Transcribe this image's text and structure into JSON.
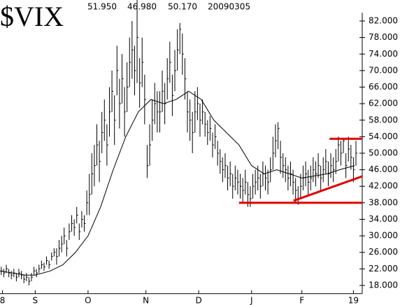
{
  "chart_data": {
    "type": "hlc",
    "title": "$VIX",
    "header_values": [
      "51.950",
      "46.980",
      "50.170",
      "20090305"
    ],
    "color": "#000000",
    "xlim": [
      0,
      144
    ],
    "ylim": [
      16,
      84
    ],
    "xticks": [
      {
        "value": 1,
        "label": "8"
      },
      {
        "value": 14,
        "label": "S"
      },
      {
        "value": 35,
        "label": "O"
      },
      {
        "value": 58,
        "label": "N"
      },
      {
        "value": 79,
        "label": "D"
      },
      {
        "value": 100,
        "label": "J"
      },
      {
        "value": 120,
        "label": "F"
      },
      {
        "value": 140.5,
        "label": "19"
      }
    ],
    "yticks": [
      {
        "value": 18,
        "label": "18.000"
      },
      {
        "value": 22,
        "label": "22.000"
      },
      {
        "value": 26,
        "label": "26.000"
      },
      {
        "value": 30,
        "label": "30.000"
      },
      {
        "value": 34,
        "label": "34.000"
      },
      {
        "value": 38,
        "label": "38.000"
      },
      {
        "value": 42,
        "label": "42.000"
      },
      {
        "value": 46,
        "label": "46.000"
      },
      {
        "value": 50,
        "label": "50.000"
      },
      {
        "value": 54,
        "label": "54.000"
      },
      {
        "value": 58,
        "label": "58.000"
      },
      {
        "value": 62,
        "label": "62.000"
      },
      {
        "value": 66,
        "label": "66.000"
      },
      {
        "value": 70,
        "label": "70.000"
      },
      {
        "value": 74,
        "label": "74.000"
      },
      {
        "value": 78,
        "label": "78.000"
      },
      {
        "value": 82,
        "label": "82.000"
      }
    ],
    "high": [
      22.5,
      22,
      23,
      22,
      21.5,
      22,
      21,
      22,
      21.5,
      20.5,
      21,
      20,
      21,
      22.5,
      22,
      23,
      24,
      23.5,
      25,
      24,
      26,
      27,
      27,
      29,
      30,
      32,
      29,
      33,
      35,
      34,
      37,
      33,
      36,
      35,
      41,
      45,
      50,
      52,
      57,
      53,
      60,
      63,
      57,
      66,
      70,
      64,
      76,
      68,
      74,
      66,
      72,
      78,
      82,
      76,
      89,
      73,
      78,
      69,
      52,
      57,
      63,
      67,
      65,
      65,
      70,
      67,
      73,
      77,
      69,
      75,
      80,
      81.5,
      79,
      73,
      65,
      63,
      60,
      65,
      66,
      62,
      63,
      60,
      58,
      59,
      55,
      57,
      53,
      51,
      49,
      50,
      47,
      48,
      45,
      47,
      46,
      45,
      44,
      46,
      43,
      42,
      45,
      46,
      47,
      45,
      48,
      47,
      46,
      49,
      54,
      57,
      57.5,
      53,
      50,
      49,
      47,
      48,
      46,
      44,
      42,
      45,
      47,
      48,
      46,
      47,
      49,
      48,
      50,
      47,
      49,
      51,
      48,
      50,
      49,
      51,
      54,
      53,
      53.5,
      50,
      54,
      52,
      49,
      53
    ],
    "low": [
      20.5,
      20,
      21,
      20,
      19.5,
      20,
      19,
      20,
      19.5,
      18.5,
      19,
      18,
      19,
      20.5,
      20,
      21,
      22,
      21.5,
      23,
      22,
      24,
      25,
      23,
      25,
      26,
      28,
      25,
      29,
      31,
      30,
      33,
      29,
      32,
      31,
      35,
      35,
      40,
      42,
      47,
      43,
      50,
      53,
      47,
      54,
      60,
      52,
      64,
      56,
      62,
      54,
      60,
      66,
      68,
      64,
      67,
      61,
      66,
      57,
      44,
      47,
      53,
      57,
      55,
      55,
      60,
      57,
      63,
      67,
      59,
      65,
      70,
      74,
      69,
      63,
      55,
      53,
      50,
      55,
      58,
      54,
      57,
      54,
      52,
      53,
      49,
      51,
      47,
      45,
      43,
      44,
      41,
      42,
      39,
      41,
      40,
      39,
      38,
      40,
      37,
      37,
      39,
      40,
      41,
      39,
      42,
      41,
      40,
      43,
      46,
      49,
      51,
      45,
      44,
      43,
      41,
      42,
      40,
      38,
      37.5,
      39,
      41,
      42,
      40,
      41,
      43,
      42,
      44,
      41,
      43,
      45,
      42,
      44,
      43,
      45,
      48,
      47,
      50,
      44,
      48,
      46,
      43,
      47
    ],
    "close": [
      21.5,
      21,
      22,
      21,
      20.5,
      21,
      20,
      21,
      20.5,
      19.5,
      20,
      19,
      20,
      21.5,
      21,
      22,
      23,
      22.5,
      24,
      23,
      25,
      26,
      25,
      27,
      28,
      30,
      27,
      31,
      33,
      32,
      35,
      31,
      34,
      33,
      38,
      40,
      45,
      47,
      52,
      48,
      55,
      58,
      52,
      60,
      65,
      58,
      70,
      62,
      68,
      60,
      66,
      72,
      75,
      70,
      78,
      67,
      72,
      63,
      47,
      52,
      58,
      62,
      60,
      60,
      65,
      62,
      68,
      72,
      64,
      70,
      75,
      80,
      74,
      68,
      60,
      58,
      55,
      60,
      62,
      58,
      60,
      57,
      55,
      56,
      52,
      54,
      50,
      48,
      46,
      47,
      44,
      45,
      42,
      44,
      43,
      42,
      41,
      43,
      40,
      39,
      42,
      43,
      44,
      42,
      45,
      44,
      43,
      46,
      50,
      53,
      56,
      49,
      47,
      46,
      44,
      45,
      43,
      41,
      39,
      42,
      44,
      45,
      43,
      44,
      46,
      45,
      47,
      44,
      46,
      48,
      45,
      47,
      46,
      48,
      52,
      50,
      53,
      47,
      51,
      49,
      46,
      50
    ],
    "moving_average": {
      "color": "#000000",
      "x": [
        0,
        5,
        10,
        14,
        20,
        25,
        30,
        35,
        40,
        45,
        50,
        55,
        60,
        65,
        70,
        75,
        80,
        85,
        90,
        95,
        100,
        105,
        110,
        115,
        120,
        125,
        130,
        135,
        141
      ],
      "values": [
        21.5,
        21,
        20.5,
        20.5,
        21.5,
        23,
        26,
        30,
        37,
        46,
        54,
        60,
        63,
        62,
        63,
        65,
        63,
        58,
        55,
        52,
        47,
        45,
        46,
        45,
        44,
        44.5,
        45,
        46,
        47
      ]
    },
    "trendlines": [
      {
        "color": "#e00000",
        "x": [
          95,
          144
        ],
        "y": [
          38,
          38
        ]
      },
      {
        "color": "#e00000",
        "x": [
          131,
          144
        ],
        "y": [
          53.5,
          53.5
        ]
      },
      {
        "color": "#e00000",
        "x": [
          116.7,
          144
        ],
        "y": [
          38.5,
          44.4
        ]
      }
    ]
  }
}
